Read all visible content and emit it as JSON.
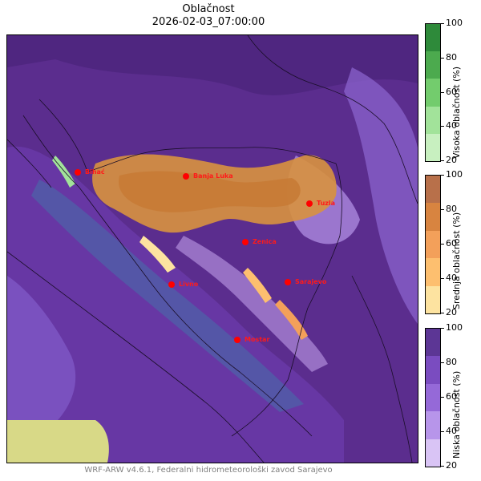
{
  "title": "Oblačnost",
  "datetime": "2026-02-03_07:00:00",
  "footer": "WRF-ARW v4.6.1, Federalni hidrometeorološki zavod Sarajevo",
  "cities": [
    {
      "name": "Bihać"
    },
    {
      "name": "Banja Luka"
    },
    {
      "name": "Tuzla"
    },
    {
      "name": "Zenica"
    },
    {
      "name": "Sarajevo"
    },
    {
      "name": "Livno"
    },
    {
      "name": "Mostar"
    }
  ],
  "colorbars": [
    {
      "label": "Visoka oblačnost (%)",
      "ticks": [
        "20",
        "40",
        "60",
        "80",
        "100"
      ],
      "colors": [
        "#c8f0c0",
        "#a2e39a",
        "#73cc6d",
        "#4caa4e",
        "#2e8a3a"
      ]
    },
    {
      "label": "Srednja oblačnost (%)",
      "ticks": [
        "20",
        "40",
        "60",
        "80",
        "100"
      ],
      "colors": [
        "#fde3a0",
        "#fdbf6f",
        "#f3a05a",
        "#d88440",
        "#b8704a"
      ]
    },
    {
      "label": "Niska oblačnost (%)",
      "ticks": [
        "20",
        "40",
        "60",
        "80",
        "100"
      ],
      "colors": [
        "#d9c4f5",
        "#b795ea",
        "#9569d8",
        "#7a4cc0",
        "#5c3695"
      ]
    }
  ]
}
